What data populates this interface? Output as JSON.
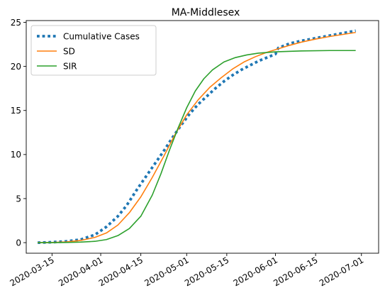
{
  "chart_data": {
    "type": "line",
    "title": "MA-Middlesex",
    "xlabel": "",
    "ylabel": "",
    "x_type": "date",
    "xlim": [
      "2020-03-06",
      "2020-07-07"
    ],
    "ylim": [
      -1.2,
      25.2
    ],
    "xticks": [
      "2020-03-15",
      "2020-04-01",
      "2020-04-15",
      "2020-05-01",
      "2020-05-15",
      "2020-06-01",
      "2020-06-15",
      "2020-07-01"
    ],
    "yticks": [
      0,
      5,
      10,
      15,
      20,
      25
    ],
    "grid": false,
    "legend": {
      "placement": "top-left",
      "entries": [
        "Cumulative Cases",
        "SD",
        "SIR"
      ]
    },
    "series": [
      {
        "name": "Cumulative Cases",
        "color": "#1f77b4",
        "style": "dotted",
        "x": [
          "2020-03-10",
          "2020-03-15",
          "2020-03-20",
          "2020-03-25",
          "2020-03-30",
          "2020-04-03",
          "2020-04-07",
          "2020-04-10",
          "2020-04-14",
          "2020-04-17",
          "2020-04-20",
          "2020-04-23",
          "2020-04-26",
          "2020-04-29",
          "2020-05-02",
          "2020-05-05",
          "2020-05-08",
          "2020-05-11",
          "2020-05-14",
          "2020-05-17",
          "2020-05-20",
          "2020-05-23",
          "2020-05-26",
          "2020-05-29",
          "2020-06-01",
          "2020-06-02",
          "2020-06-06",
          "2020-06-10",
          "2020-06-15",
          "2020-06-20",
          "2020-06-25",
          "2020-06-29"
        ],
        "values": [
          0.0,
          0.05,
          0.15,
          0.35,
          0.9,
          1.8,
          3.0,
          4.2,
          6.2,
          7.6,
          9.0,
          10.4,
          11.9,
          13.3,
          14.6,
          15.7,
          16.6,
          17.5,
          18.3,
          19.0,
          19.6,
          20.1,
          20.6,
          21.0,
          21.4,
          22.1,
          22.6,
          22.9,
          23.2,
          23.5,
          23.8,
          24.05
        ]
      },
      {
        "name": "SD",
        "color": "#ff7f0e",
        "style": "solid",
        "x": [
          "2020-03-10",
          "2020-03-15",
          "2020-03-20",
          "2020-03-25",
          "2020-03-30",
          "2020-04-03",
          "2020-04-07",
          "2020-04-11",
          "2020-04-15",
          "2020-04-19",
          "2020-04-23",
          "2020-04-27",
          "2020-05-01",
          "2020-05-05",
          "2020-05-09",
          "2020-05-13",
          "2020-05-17",
          "2020-05-21",
          "2020-05-25",
          "2020-05-29",
          "2020-06-02",
          "2020-06-06",
          "2020-06-10",
          "2020-06-15",
          "2020-06-20",
          "2020-06-25",
          "2020-06-29"
        ],
        "values": [
          0.0,
          0.02,
          0.08,
          0.25,
          0.6,
          1.1,
          2.0,
          3.4,
          5.2,
          7.4,
          9.8,
          12.3,
          14.5,
          16.2,
          17.6,
          18.7,
          19.7,
          20.5,
          21.1,
          21.6,
          22.0,
          22.4,
          22.75,
          23.1,
          23.4,
          23.65,
          23.85
        ]
      },
      {
        "name": "SIR",
        "color": "#2ca02c",
        "style": "solid",
        "x": [
          "2020-03-10",
          "2020-03-15",
          "2020-03-20",
          "2020-03-25",
          "2020-03-30",
          "2020-04-03",
          "2020-04-07",
          "2020-04-11",
          "2020-04-15",
          "2020-04-19",
          "2020-04-22",
          "2020-04-25",
          "2020-04-28",
          "2020-05-01",
          "2020-05-04",
          "2020-05-07",
          "2020-05-10",
          "2020-05-14",
          "2020-05-18",
          "2020-05-22",
          "2020-05-26",
          "2020-06-01",
          "2020-06-10",
          "2020-06-20",
          "2020-06-29"
        ],
        "values": [
          0.0,
          0.0,
          0.02,
          0.06,
          0.15,
          0.35,
          0.8,
          1.6,
          3.0,
          5.4,
          7.8,
          10.5,
          13.0,
          15.3,
          17.2,
          18.6,
          19.6,
          20.5,
          21.0,
          21.3,
          21.5,
          21.65,
          21.75,
          21.8,
          21.8
        ]
      }
    ]
  }
}
